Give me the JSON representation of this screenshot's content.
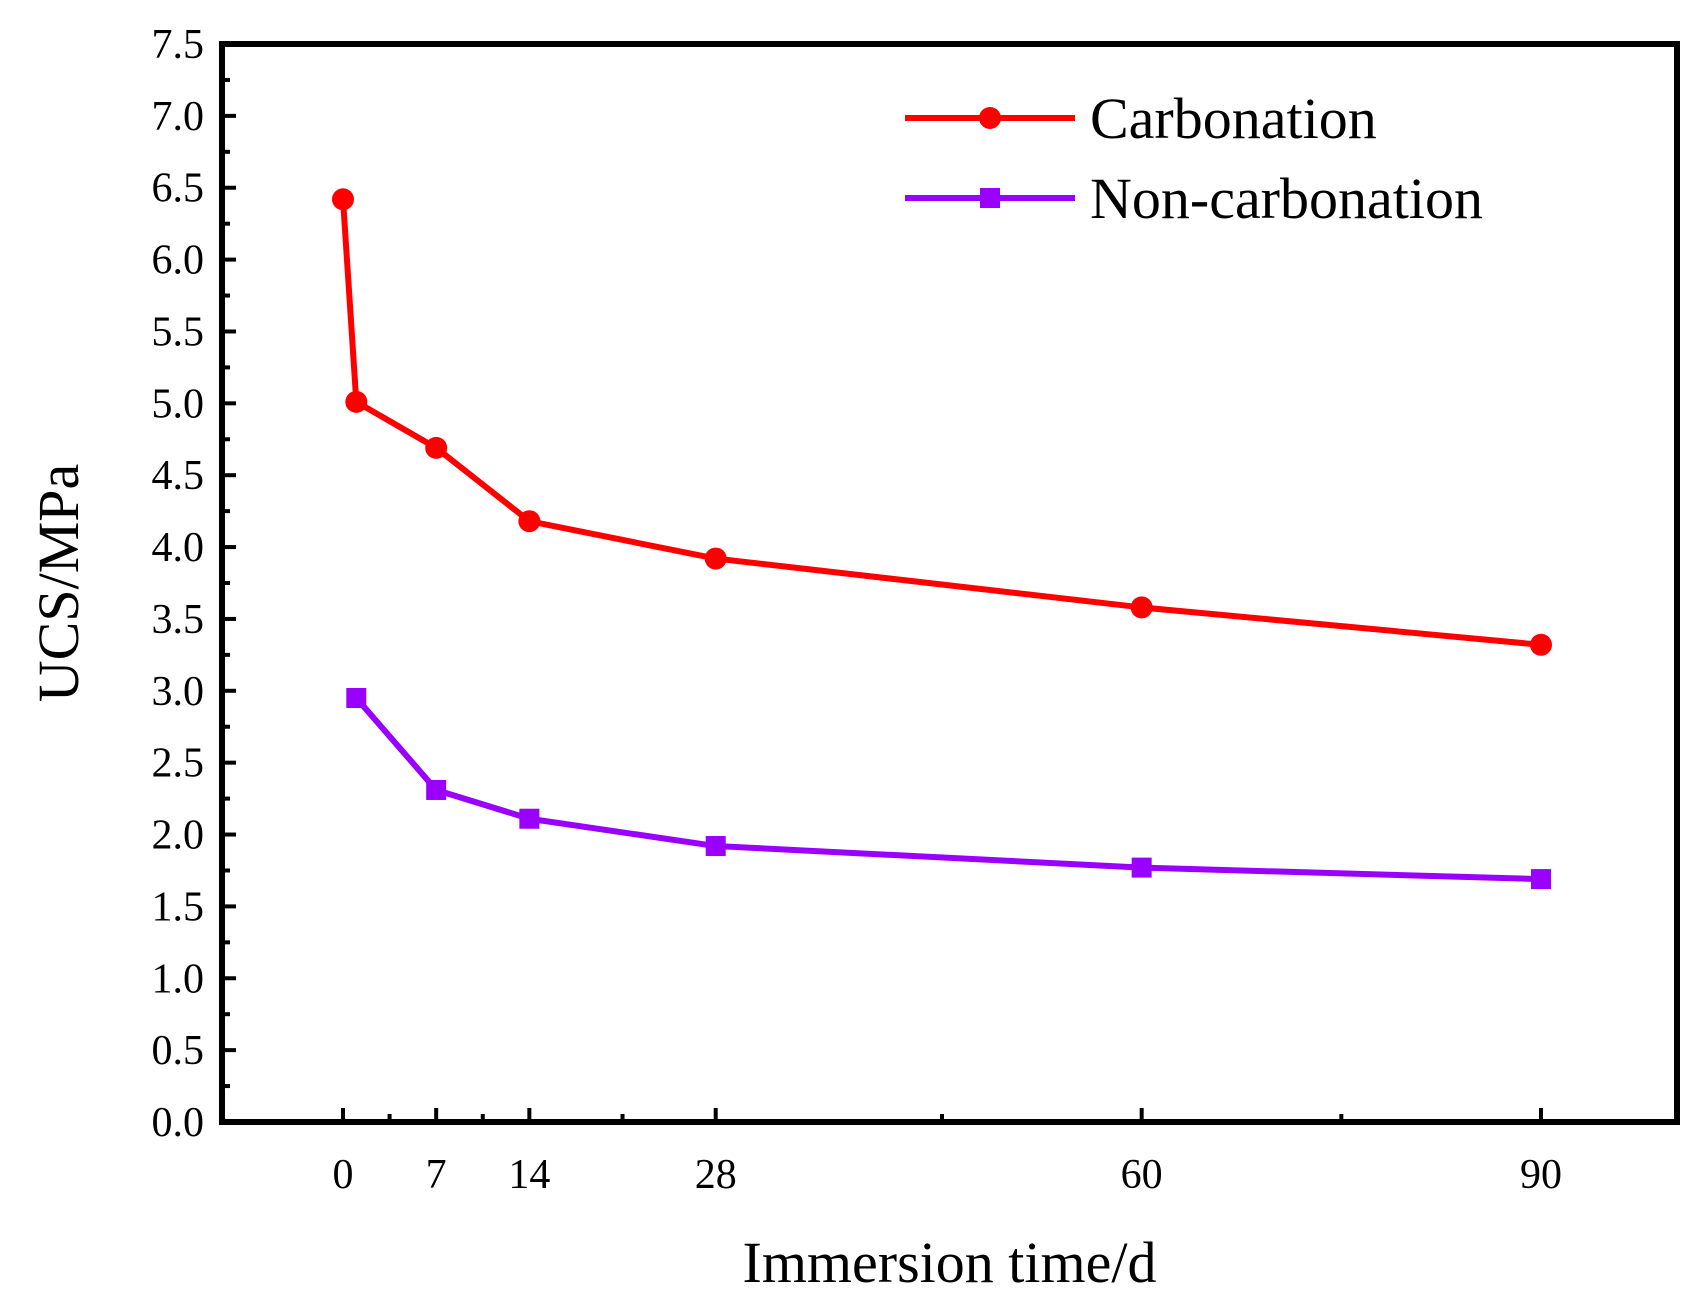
{
  "chart_data": {
    "type": "line",
    "title": "",
    "xlabel": "Immersion time/d",
    "ylabel": "UCS/MPa",
    "xlim": [
      -9,
      100
    ],
    "ylim": [
      0,
      7.5
    ],
    "x_ticks": [
      0,
      7,
      14,
      28,
      60,
      90
    ],
    "x_tick_labels": [
      "0",
      "7",
      "14",
      "28",
      "60",
      "90"
    ],
    "y_ticks": [
      0,
      0.5,
      1.0,
      1.5,
      2.0,
      2.5,
      3.0,
      3.5,
      4.0,
      4.5,
      5.0,
      5.5,
      6.0,
      6.5,
      7.0,
      7.5
    ],
    "y_tick_labels": [
      "0.0",
      "0.5",
      "1.0",
      "1.5",
      "2.0",
      "2.5",
      "3.0",
      "3.5",
      "4.0",
      "4.5",
      "5.0",
      "5.5",
      "6.0",
      "6.5",
      "7.0",
      "7.5"
    ],
    "grid": false,
    "legend_position": "top-right",
    "series": [
      {
        "name": "Carbonation",
        "color": "#ff0000",
        "marker": "circle",
        "x": [
          0,
          1,
          7,
          14,
          28,
          60,
          90
        ],
        "y": [
          6.42,
          5.01,
          4.69,
          4.18,
          3.92,
          3.58,
          3.32
        ]
      },
      {
        "name": "Non-carbonation",
        "color": "#9900ff",
        "marker": "square",
        "x": [
          1,
          7,
          14,
          28,
          60,
          90
        ],
        "y": [
          2.95,
          2.31,
          2.11,
          1.92,
          1.77,
          1.69
        ]
      }
    ]
  }
}
